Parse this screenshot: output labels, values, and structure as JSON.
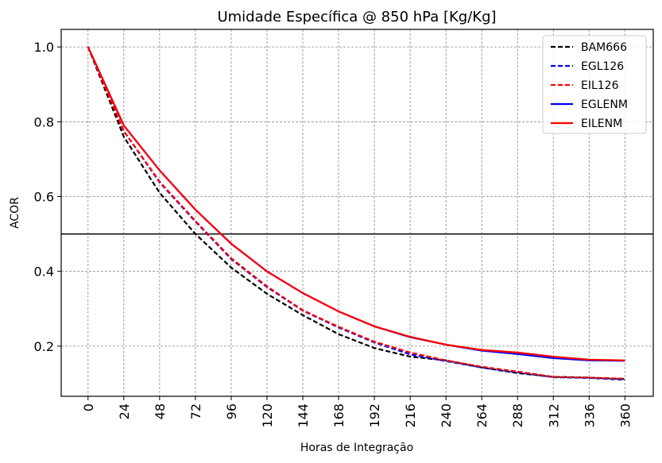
{
  "chart_data": {
    "type": "line",
    "title": "Umidade Específica @ 850 hPa [Kg/Kg]",
    "xlabel": "Horas de Integração",
    "ylabel": "ACOR",
    "x": [
      0,
      24,
      48,
      72,
      96,
      120,
      144,
      168,
      192,
      216,
      240,
      264,
      288,
      312,
      336,
      360
    ],
    "xticks": [
      "0",
      "24",
      "48",
      "72",
      "96",
      "120",
      "144",
      "168",
      "192",
      "216",
      "240",
      "264",
      "288",
      "312",
      "336",
      "360"
    ],
    "yticks": [
      0.2,
      0.4,
      0.6,
      0.8,
      1.0
    ],
    "ytick_labels": [
      "0.2",
      "0.4",
      "0.6",
      "0.8",
      "1.0"
    ],
    "xlim": [
      -18,
      379
    ],
    "ylim": [
      0.066,
      1.047
    ],
    "grid": true,
    "reference_line": 0.5,
    "legend_position": "top-right",
    "series": [
      {
        "name": "BAM666",
        "color": "#000000",
        "dashed": true,
        "values": [
          1.0,
          0.76,
          0.61,
          0.5,
          0.41,
          0.34,
          0.283,
          0.232,
          0.195,
          0.172,
          0.162,
          0.143,
          0.128,
          0.118,
          0.116,
          0.112
        ]
      },
      {
        "name": "EGL126",
        "color": "#0000ff",
        "dashed": true,
        "values": [
          1.0,
          0.775,
          0.638,
          0.533,
          0.433,
          0.358,
          0.295,
          0.25,
          0.21,
          0.178,
          0.16,
          0.143,
          0.13,
          0.117,
          0.115,
          0.11
        ]
      },
      {
        "name": "EIL126",
        "color": "#ff0000",
        "dashed": true,
        "values": [
          1.0,
          0.775,
          0.64,
          0.535,
          0.435,
          0.36,
          0.296,
          0.252,
          0.212,
          0.183,
          0.162,
          0.145,
          0.132,
          0.118,
          0.116,
          0.113
        ]
      },
      {
        "name": "EGLENM",
        "color": "#0000ff",
        "dashed": false,
        "values": [
          1.0,
          0.79,
          0.67,
          0.565,
          0.474,
          0.4,
          0.342,
          0.293,
          0.253,
          0.224,
          0.204,
          0.188,
          0.179,
          0.168,
          0.162,
          0.161
        ]
      },
      {
        "name": "EILENM",
        "color": "#ff0000",
        "dashed": false,
        "values": [
          1.0,
          0.79,
          0.67,
          0.565,
          0.474,
          0.4,
          0.342,
          0.293,
          0.253,
          0.225,
          0.204,
          0.19,
          0.183,
          0.172,
          0.164,
          0.162
        ]
      }
    ]
  }
}
